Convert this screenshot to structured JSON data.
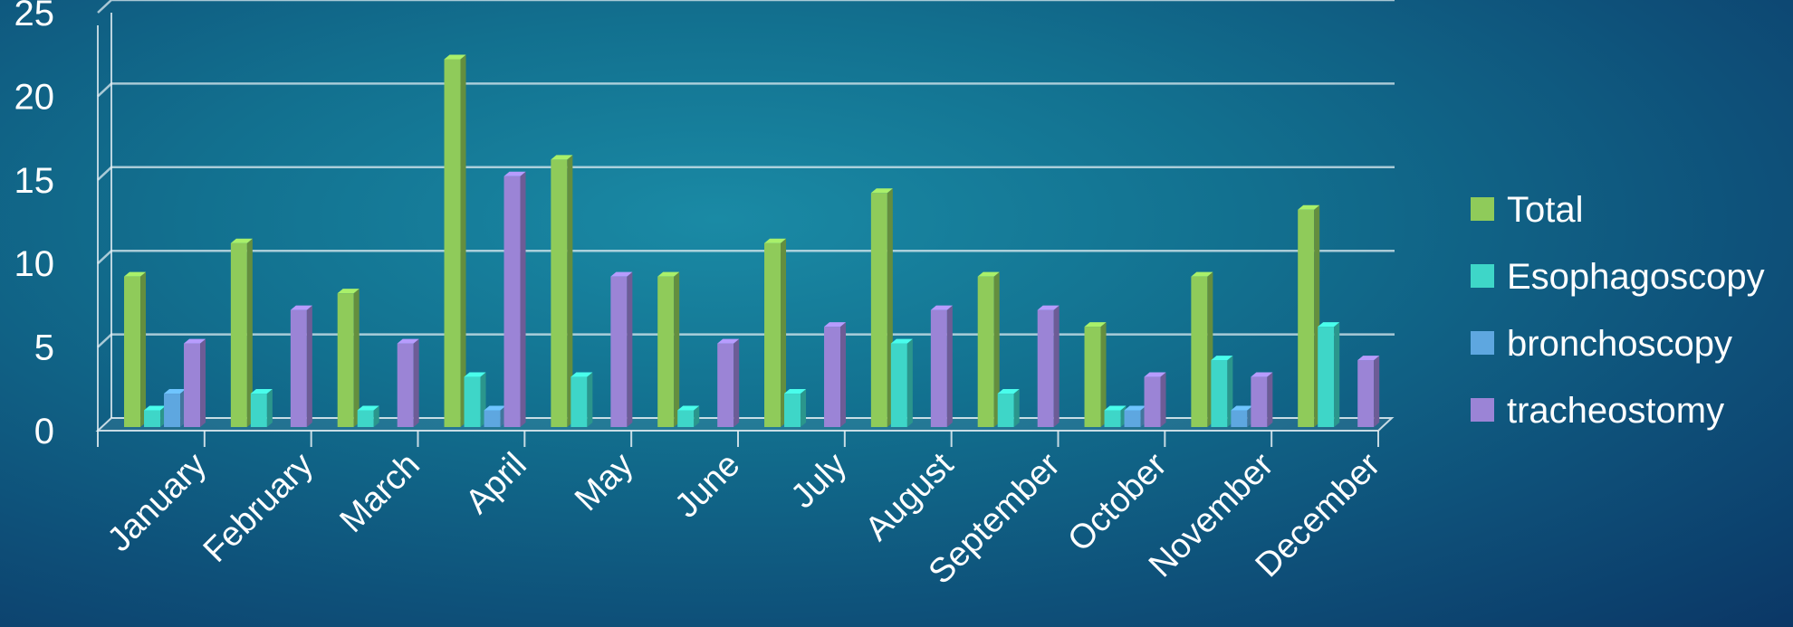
{
  "chart_data": {
    "type": "bar",
    "categories": [
      "January",
      "February",
      "March",
      "April",
      "May",
      "June",
      "July",
      "August",
      "September",
      "October",
      "November",
      "December"
    ],
    "series": [
      {
        "name": "Total",
        "color": "#8fcb5a",
        "values": [
          9,
          11,
          8,
          22,
          16,
          9,
          11,
          14,
          9,
          6,
          9,
          13
        ]
      },
      {
        "name": "Esophagoscopy",
        "color": "#3ed6c8",
        "values": [
          1,
          2,
          1,
          3,
          3,
          1,
          2,
          5,
          2,
          1,
          4,
          6
        ]
      },
      {
        "name": "bronchoscopy",
        "color": "#5ea7e0",
        "values": [
          2,
          0,
          0,
          1,
          0,
          0,
          0,
          0,
          0,
          1,
          1,
          0
        ]
      },
      {
        "name": "tracheostomy",
        "color": "#9b84d6",
        "values": [
          5,
          7,
          5,
          15,
          9,
          5,
          6,
          7,
          7,
          3,
          3,
          4
        ]
      }
    ],
    "yticks": [
      "0",
      "5",
      "10",
      "15",
      "20",
      "25"
    ],
    "ylim": [
      0,
      25
    ],
    "grid": true,
    "legend": "right"
  }
}
